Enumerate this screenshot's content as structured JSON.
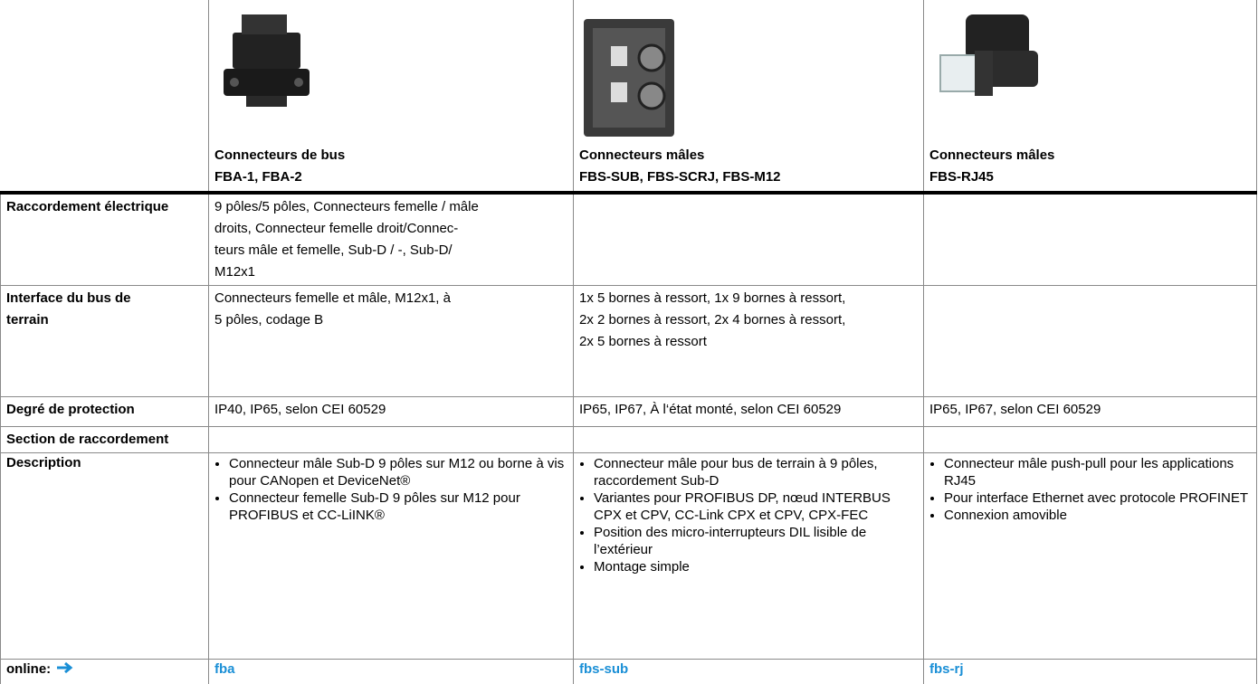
{
  "header": {
    "columns": [
      {
        "title": "Connecteurs de bus",
        "subtitle": "FBA-1, FBA-2"
      },
      {
        "title": "Connecteurs mâles",
        "subtitle": "FBS-SUB, FBS-SCRJ, FBS-M12"
      },
      {
        "title": "Connecteurs mâles",
        "subtitle": "FBS-RJ45"
      }
    ]
  },
  "rows": [
    {
      "label": [
        "Raccordement électrique"
      ],
      "cells": [
        [
          "9 pôles/5 pôles, Connecteurs femelle / mâle",
          "droits, Connecteur femelle droit/Connec-",
          "teurs mâle et femelle, Sub-D / -, Sub-D/",
          "M12x1"
        ],
        [],
        []
      ]
    },
    {
      "label": [
        "Interface du bus de",
        "terrain"
      ],
      "cells": [
        [
          "Connecteurs femelle et mâle, M12x1, à",
          "5 pôles, codage B"
        ],
        [
          "1x 5 bornes à ressort, 1x 9 bornes à ressort,",
          "2x 2 bornes à ressort, 2x 4 bornes à ressort,",
          "2x 5 bornes à ressort"
        ],
        []
      ]
    },
    {
      "label": [
        "Degré de protection"
      ],
      "cells": [
        [
          "IP40, IP65, selon CEI 60529"
        ],
        [
          "IP65, IP67, À l‘état monté, selon CEI 60529"
        ],
        [
          "IP65, IP67, selon CEI 60529"
        ]
      ]
    },
    {
      "label": [
        "Section de raccordement"
      ],
      "cells": [
        [],
        [],
        []
      ]
    }
  ],
  "description": {
    "label": "Description",
    "cells": [
      [
        "Connecteur mâle Sub-D 9 pôles sur M12 ou borne à vis pour CANopen et DeviceNet®",
        "Connecteur femelle Sub-D 9 pôles sur M12 pour PROFIBUS et CC-LiINK®"
      ],
      [
        "Connecteur mâle pour bus de terrain à 9 pôles, raccordement Sub-D",
        "Variantes pour PROFIBUS DP, nœud INTERBUS CPX et CPV, CC-Link CPX et CPV, CPX-FEC",
        "Position des micro-interrupteurs DIL lisible de l’extérieur",
        "Montage simple"
      ],
      [
        "Connecteur mâle push-pull pour les applications RJ45",
        "Pour interface Ethernet avec protocole PROFINET",
        "Connexion amovible"
      ]
    ]
  },
  "online": {
    "label": "online:",
    "links": [
      "fba",
      "fbs-sub",
      "fbs-rj"
    ]
  }
}
